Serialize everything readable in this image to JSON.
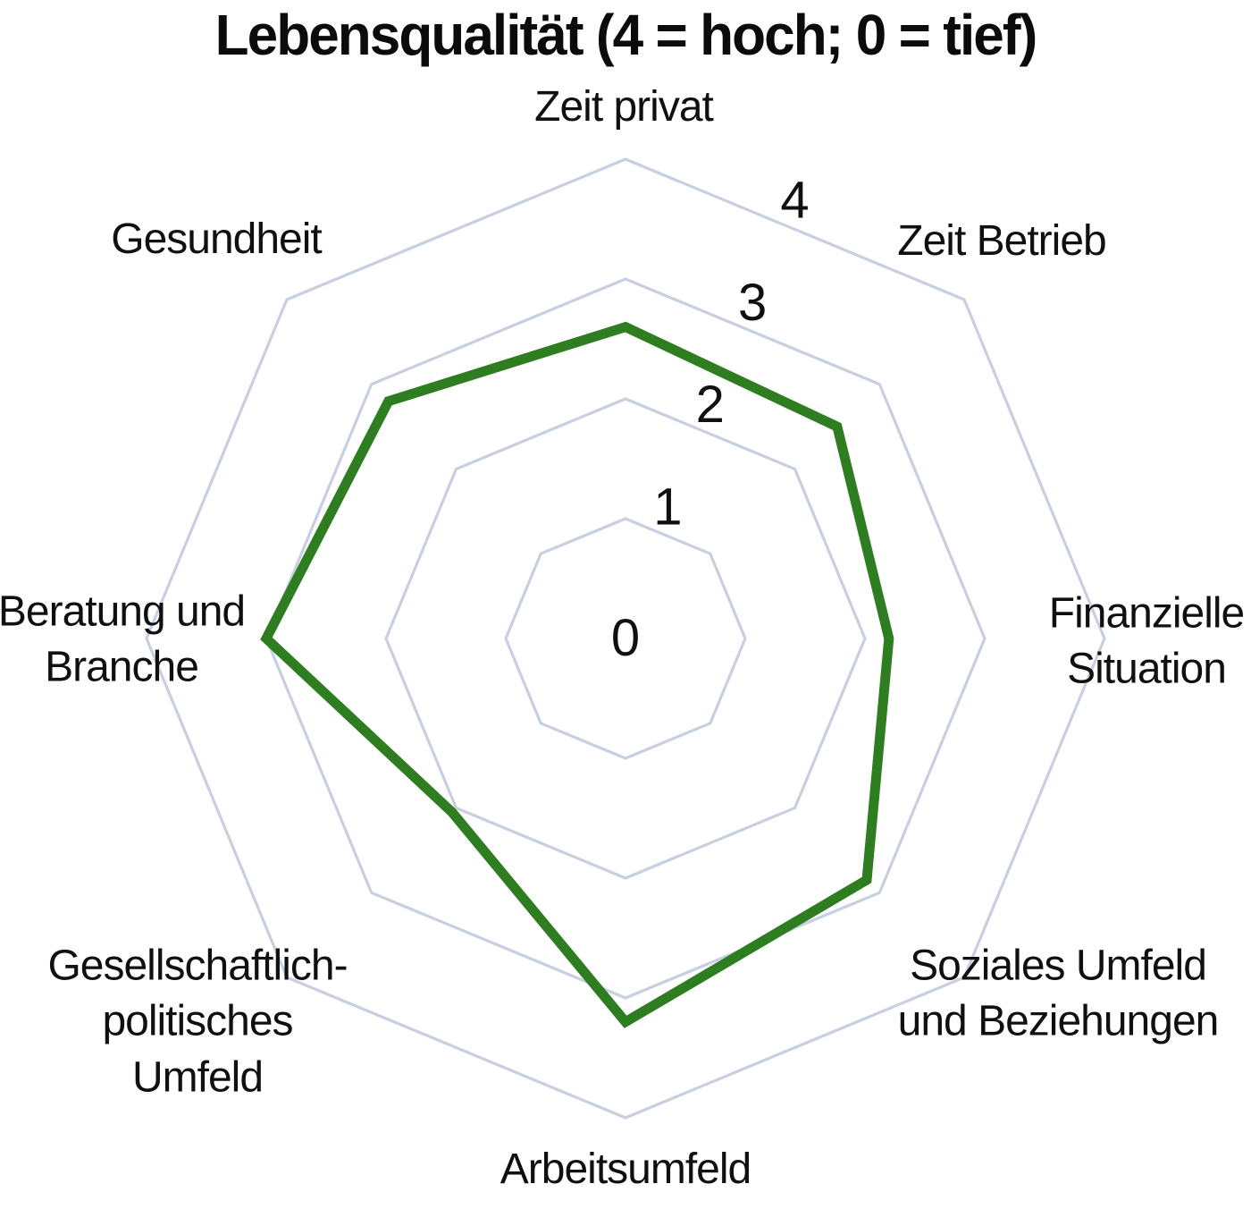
{
  "title": "Lebensqualität (4 = hoch; 0 = tief)",
  "chart_data": {
    "type": "radar",
    "title": "Lebensqualität (4 = hoch; 0 = tief)",
    "subtitle": "",
    "legend_position": "none",
    "grid": true,
    "grid_shape": "octagon-rings-no-spokes",
    "scale": {
      "min": 0,
      "max": 4,
      "step": 1,
      "tick_labels": [
        "0",
        "1",
        "2",
        "3",
        "4"
      ]
    },
    "axes_clockwise_from_top": [
      "Zeit privat",
      "Zeit Betrieb",
      "Finanzielle Situation",
      "Soziales Umfeld und Beziehungen",
      "Arbeitsumfeld",
      "Gesellschaftlich-politisches Umfeld",
      "Beratung und Branche",
      "Gesundheit"
    ],
    "series": [
      {
        "name": "Lebensqualität",
        "values": [
          2.6,
          2.5,
          2.2,
          2.85,
          3.2,
          2.05,
          3.0,
          2.8
        ]
      }
    ],
    "axes": [
      {
        "id": "zeit-privat",
        "lines": [
          "Zeit privat"
        ],
        "value": 2.6
      },
      {
        "id": "zeit-betrieb",
        "lines": [
          "Zeit Betrieb"
        ],
        "value": 2.5
      },
      {
        "id": "finanzielle-situation",
        "lines": [
          "Finanzielle",
          "Situation"
        ],
        "value": 2.2
      },
      {
        "id": "soziales-umfeld-und-beziehungen",
        "lines": [
          "Soziales Umfeld",
          "und Beziehungen"
        ],
        "value": 2.85
      },
      {
        "id": "arbeitsumfeld",
        "lines": [
          "Arbeitsumfeld"
        ],
        "value": 3.2
      },
      {
        "id": "gesellschaftlich-politisches-umfeld",
        "lines": [
          "Gesellschaftlich-",
          "politisches",
          "Umfeld"
        ],
        "value": 2.05
      },
      {
        "id": "beratung-und-branche",
        "lines": [
          "Beratung und",
          "Branche"
        ],
        "value": 3.0
      },
      {
        "id": "gesundheit",
        "lines": [
          "Gesundheit"
        ],
        "value": 2.8
      }
    ],
    "colors": {
      "series_stroke": "#2e7d20",
      "grid_stroke": "#c7d0e0",
      "text": "#101010",
      "background": "#ffffff"
    }
  }
}
